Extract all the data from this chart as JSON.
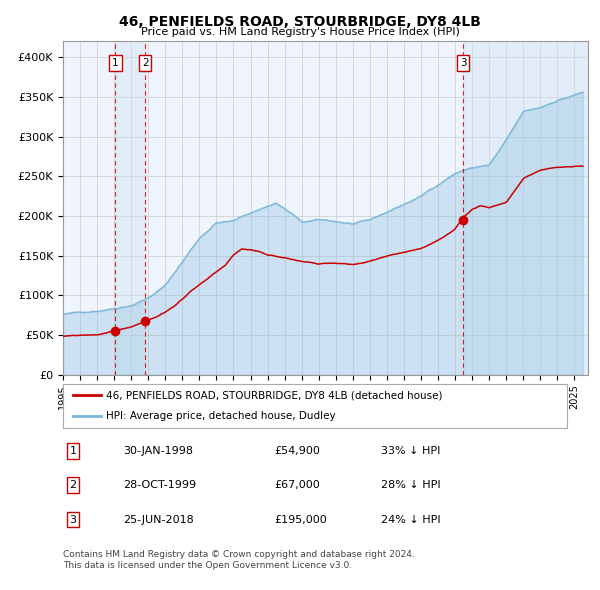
{
  "title": "46, PENFIELDS ROAD, STOURBRIDGE, DY8 4LB",
  "subtitle": "Price paid vs. HM Land Registry's House Price Index (HPI)",
  "legend_house": "46, PENFIELDS ROAD, STOURBRIDGE, DY8 4LB (detached house)",
  "legend_hpi": "HPI: Average price, detached house, Dudley",
  "footer_line1": "Contains HM Land Registry data © Crown copyright and database right 2024.",
  "footer_line2": "This data is licensed under the Open Government Licence v3.0.",
  "transactions": [
    {
      "label": "1",
      "date": "1998-01-30",
      "price": 54900,
      "x_year": 1998.08
    },
    {
      "label": "2",
      "date": "1999-10-28",
      "price": 67000,
      "x_year": 1999.82
    },
    {
      "label": "3",
      "date": "2018-06-25",
      "price": 195000,
      "x_year": 2018.48
    }
  ],
  "table_rows": [
    {
      "num": "1",
      "date": "30-JAN-1998",
      "price": "£54,900",
      "note": "33% ↓ HPI"
    },
    {
      "num": "2",
      "date": "28-OCT-1999",
      "price": "£67,000",
      "note": "28% ↓ HPI"
    },
    {
      "num": "3",
      "date": "25-JUN-2018",
      "price": "£195,000",
      "note": "24% ↓ HPI"
    }
  ],
  "hpi_color": "#7ab8d9",
  "house_color": "#cc0000",
  "vline_color": "#cc0000",
  "shade_color": "#cce0f0",
  "background_color": "#ffffff",
  "grid_color": "#cccccc",
  "ylim": [
    0,
    420000
  ],
  "xlim_start": 1995.0,
  "xlim_end": 2025.8,
  "hpi_keypoints": [
    [
      1995.0,
      76000
    ],
    [
      1996.0,
      78000
    ],
    [
      1997.0,
      81000
    ],
    [
      1998.0,
      85000
    ],
    [
      1999.0,
      90000
    ],
    [
      2000.0,
      100000
    ],
    [
      2001.0,
      115000
    ],
    [
      2002.0,
      145000
    ],
    [
      2003.0,
      175000
    ],
    [
      2004.0,
      195000
    ],
    [
      2005.0,
      197000
    ],
    [
      2006.0,
      207000
    ],
    [
      2007.5,
      220000
    ],
    [
      2008.5,
      205000
    ],
    [
      2009.0,
      195000
    ],
    [
      2010.0,
      197000
    ],
    [
      2011.0,
      195000
    ],
    [
      2012.0,
      192000
    ],
    [
      2013.0,
      195000
    ],
    [
      2014.0,
      205000
    ],
    [
      2015.0,
      215000
    ],
    [
      2016.0,
      225000
    ],
    [
      2017.0,
      240000
    ],
    [
      2018.0,
      255000
    ],
    [
      2019.0,
      262000
    ],
    [
      2020.0,
      265000
    ],
    [
      2021.0,
      295000
    ],
    [
      2022.0,
      330000
    ],
    [
      2023.0,
      335000
    ],
    [
      2024.0,
      345000
    ],
    [
      2025.5,
      355000
    ]
  ],
  "house_keypoints": [
    [
      1995.0,
      48000
    ],
    [
      1996.0,
      49000
    ],
    [
      1997.0,
      50000
    ],
    [
      1998.08,
      54900
    ],
    [
      1999.0,
      60000
    ],
    [
      1999.82,
      67000
    ],
    [
      2000.5,
      72000
    ],
    [
      2001.5,
      85000
    ],
    [
      2002.5,
      105000
    ],
    [
      2003.5,
      120000
    ],
    [
      2004.5,
      135000
    ],
    [
      2005.0,
      148000
    ],
    [
      2005.5,
      155000
    ],
    [
      2006.5,
      152000
    ],
    [
      2007.0,
      148000
    ],
    [
      2008.0,
      145000
    ],
    [
      2009.0,
      140000
    ],
    [
      2010.0,
      138000
    ],
    [
      2011.0,
      140000
    ],
    [
      2012.0,
      138000
    ],
    [
      2013.0,
      142000
    ],
    [
      2014.0,
      148000
    ],
    [
      2015.0,
      153000
    ],
    [
      2016.0,
      158000
    ],
    [
      2017.0,
      168000
    ],
    [
      2018.0,
      180000
    ],
    [
      2018.48,
      195000
    ],
    [
      2019.0,
      205000
    ],
    [
      2019.5,
      210000
    ],
    [
      2020.0,
      208000
    ],
    [
      2021.0,
      215000
    ],
    [
      2022.0,
      245000
    ],
    [
      2023.0,
      255000
    ],
    [
      2024.0,
      258000
    ],
    [
      2025.5,
      260000
    ]
  ]
}
